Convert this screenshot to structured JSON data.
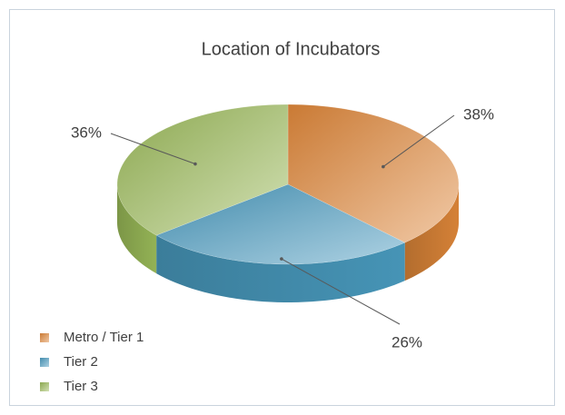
{
  "chart_data": {
    "type": "pie",
    "title": "Location of Incubators",
    "categories": [
      "Metro / Tier 1",
      "Tier 2",
      "Tier 3"
    ],
    "values": [
      38,
      26,
      36
    ],
    "value_labels": [
      "38%",
      "26%",
      "36%"
    ],
    "colors": [
      "#e0883a",
      "#4a9cc0",
      "#9bbb59"
    ],
    "legend": "bottom-left"
  }
}
